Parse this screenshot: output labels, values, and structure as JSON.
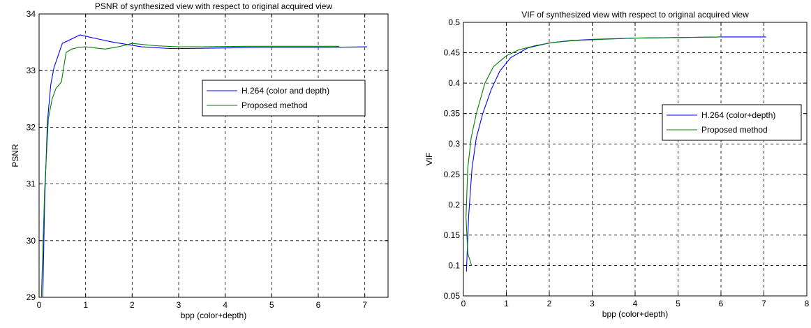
{
  "chart_data": [
    {
      "type": "line",
      "title": "PSNR of synthesized view with respect to original acquired view",
      "xlabel": "bpp (color+depth)",
      "ylabel": "PSNR",
      "xlim": [
        0,
        7.5
      ],
      "ylim": [
        29,
        34
      ],
      "xticks": [
        0,
        1,
        2,
        3,
        4,
        5,
        6,
        7
      ],
      "xtick_labels": [
        "0",
        "1",
        "2",
        "3",
        "4",
        "5",
        "6",
        "7"
      ],
      "yticks": [
        29,
        30,
        31,
        32,
        33,
        34
      ],
      "ytick_labels": [
        "29",
        "30",
        "31",
        "32",
        "33",
        "34"
      ],
      "grid": true,
      "legend_position": "right",
      "series": [
        {
          "name": "H.264 (color and depth)",
          "color": "#0000ff",
          "x": [
            0.08,
            0.12,
            0.18,
            0.25,
            0.32,
            0.5,
            0.88,
            1.2,
            1.6,
            2.2,
            2.8,
            3.2,
            4.0,
            5.0,
            6.0,
            7.05
          ],
          "y": [
            29.0,
            30.7,
            32.1,
            32.75,
            33.05,
            33.48,
            33.63,
            33.57,
            33.5,
            33.42,
            33.39,
            33.39,
            33.4,
            33.41,
            33.41,
            33.42
          ]
        },
        {
          "name": "Proposed method",
          "color": "#008000",
          "x": [
            0.05,
            0.12,
            0.2,
            0.28,
            0.36,
            0.48,
            0.58,
            0.7,
            0.85,
            1.0,
            1.2,
            1.42,
            1.7,
            2.0,
            2.5,
            3.0,
            3.5,
            4.5,
            5.5,
            6.45
          ],
          "y": [
            29.0,
            30.9,
            32.15,
            32.5,
            32.68,
            32.8,
            33.32,
            33.38,
            33.41,
            33.42,
            33.4,
            33.38,
            33.42,
            33.48,
            33.44,
            33.42,
            33.42,
            33.43,
            33.43,
            33.43
          ]
        }
      ]
    },
    {
      "type": "line",
      "title": "VIF of synthesized view with respect to original acquired view",
      "xlabel": "bpp (color+depth)",
      "ylabel": "VIF",
      "xlim": [
        0,
        8
      ],
      "ylim": [
        0.05,
        0.5
      ],
      "xticks": [
        0,
        1,
        2,
        3,
        4,
        5,
        6,
        7,
        8
      ],
      "xtick_labels": [
        "0",
        "1",
        "2",
        "3",
        "4",
        "5",
        "6",
        "7",
        "8"
      ],
      "yticks": [
        0.05,
        0.1,
        0.15,
        0.2,
        0.25,
        0.3,
        0.35,
        0.4,
        0.45,
        0.5
      ],
      "ytick_labels": [
        "0.05",
        "0.1",
        "0.15",
        "0.2",
        "0.25",
        "0.3",
        "0.35",
        "0.4",
        "0.45",
        "0.5"
      ],
      "grid": true,
      "legend_position": "right",
      "series": [
        {
          "name": "H.264 (color+depth)",
          "color": "#0000ff",
          "x": [
            0.07,
            0.12,
            0.2,
            0.3,
            0.45,
            0.65,
            0.85,
            1.1,
            1.5,
            2.0,
            2.5,
            3.0,
            4.0,
            5.0,
            6.0,
            7.05
          ],
          "y": [
            0.09,
            0.18,
            0.26,
            0.31,
            0.35,
            0.39,
            0.42,
            0.442,
            0.458,
            0.466,
            0.47,
            0.472,
            0.474,
            0.475,
            0.476,
            0.476
          ]
        },
        {
          "name": "Proposed method",
          "color": "#008000",
          "x": [
            0.19,
            0.1,
            0.06,
            0.1,
            0.18,
            0.3,
            0.5,
            0.7,
            1.0,
            1.3,
            1.7,
            2.1,
            2.6,
            3.2,
            4.0,
            5.0,
            6.0
          ],
          "y": [
            0.1,
            0.12,
            0.18,
            0.26,
            0.31,
            0.35,
            0.4,
            0.427,
            0.445,
            0.455,
            0.462,
            0.467,
            0.47,
            0.472,
            0.474,
            0.475,
            0.476
          ]
        }
      ]
    }
  ]
}
